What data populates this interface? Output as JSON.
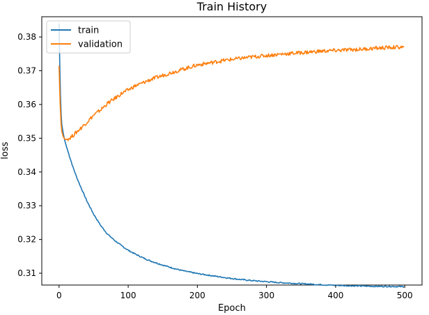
{
  "chart_data": {
    "type": "line",
    "title": "Train History",
    "xlabel": "Epoch",
    "ylabel": "loss",
    "xlim": [
      -25,
      525
    ],
    "ylim": [
      0.3065,
      0.386
    ],
    "xticks": [
      0,
      100,
      200,
      300,
      400,
      500
    ],
    "yticks": [
      0.31,
      0.32,
      0.33,
      0.34,
      0.35,
      0.36,
      0.37,
      0.38
    ],
    "ytick_labels": [
      "0.31",
      "0.32",
      "0.33",
      "0.34",
      "0.35",
      "0.36",
      "0.37",
      "0.38"
    ],
    "legend_position": "top-left",
    "grid": false,
    "series": [
      {
        "name": "train",
        "color": "#1f77b4",
        "x": [
          0,
          1,
          2,
          3,
          4,
          6,
          8,
          10,
          15,
          20,
          25,
          30,
          40,
          50,
          60,
          70,
          80,
          90,
          100,
          110,
          120,
          130,
          140,
          150,
          160,
          170,
          180,
          190,
          200,
          220,
          240,
          260,
          280,
          300,
          320,
          340,
          360,
          380,
          400,
          420,
          440,
          460,
          480,
          499
        ],
        "y": [
          0.384,
          0.372,
          0.363,
          0.357,
          0.354,
          0.3515,
          0.3495,
          0.348,
          0.3447,
          0.3415,
          0.3387,
          0.3362,
          0.3315,
          0.3275,
          0.3242,
          0.3216,
          0.3198,
          0.3182,
          0.3168,
          0.3157,
          0.3147,
          0.3138,
          0.3131,
          0.3124,
          0.3118,
          0.3112,
          0.3107,
          0.3103,
          0.3099,
          0.3093,
          0.3087,
          0.3082,
          0.3078,
          0.3075,
          0.3072,
          0.307,
          0.3068,
          0.3066,
          0.3064,
          0.3063,
          0.3062,
          0.3061,
          0.3061,
          0.306
        ]
      },
      {
        "name": "validation",
        "color": "#ff7f0e",
        "x": [
          0,
          1,
          2,
          3,
          4,
          6,
          8,
          10,
          15,
          20,
          30,
          40,
          50,
          60,
          70,
          80,
          90,
          100,
          110,
          120,
          130,
          140,
          150,
          160,
          170,
          180,
          190,
          200,
          220,
          240,
          260,
          280,
          300,
          320,
          340,
          360,
          380,
          400,
          420,
          440,
          460,
          480,
          499
        ],
        "y": [
          0.3715,
          0.364,
          0.358,
          0.354,
          0.352,
          0.3505,
          0.3498,
          0.3496,
          0.35,
          0.3508,
          0.3527,
          0.3547,
          0.3568,
          0.3584,
          0.3603,
          0.3617,
          0.3632,
          0.3643,
          0.3655,
          0.3663,
          0.3672,
          0.3679,
          0.3686,
          0.3693,
          0.3699,
          0.3705,
          0.3711,
          0.3717,
          0.3724,
          0.3731,
          0.3736,
          0.3741,
          0.3745,
          0.3749,
          0.3752,
          0.3755,
          0.3758,
          0.376,
          0.3762,
          0.3764,
          0.3767,
          0.3769,
          0.377
        ]
      }
    ]
  }
}
